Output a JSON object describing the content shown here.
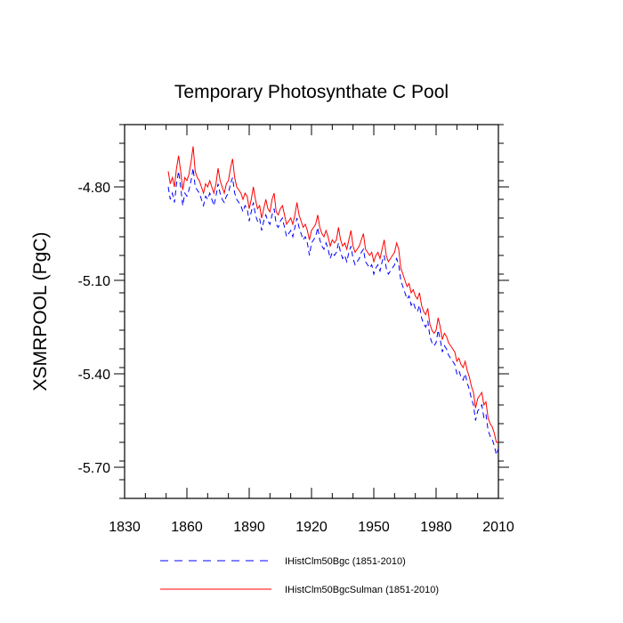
{
  "chart_data": {
    "type": "line",
    "title": "Temporary Photosynthate C Pool",
    "xlabel": "",
    "ylabel": "XSMRPOOL  (PgC)",
    "xlim": [
      1830,
      2010
    ],
    "ylim": [
      -5.8,
      -4.6
    ],
    "x_ticks": [
      1830,
      1860,
      1890,
      1920,
      1950,
      1980,
      2010
    ],
    "x_tick_labels": [
      "1830",
      "1860",
      "1890",
      "1920",
      "1950",
      "1980",
      "2010"
    ],
    "y_ticks": [
      -4.8,
      -5.1,
      -5.4,
      -5.7
    ],
    "y_tick_labels": [
      "-4.80",
      "-5.10",
      "-5.40",
      "-5.70"
    ],
    "grid": false,
    "legend_position": "bottom",
    "series": [
      {
        "name": "IHistClm50Bgc (1851-2010)",
        "color": "#0000ff",
        "style": "dashed",
        "x": [
          1851,
          1852,
          1853,
          1854,
          1855,
          1856,
          1857,
          1858,
          1859,
          1860,
          1861,
          1862,
          1863,
          1864,
          1865,
          1866,
          1867,
          1868,
          1869,
          1870,
          1871,
          1872,
          1873,
          1874,
          1875,
          1876,
          1877,
          1878,
          1879,
          1880,
          1881,
          1882,
          1883,
          1884,
          1885,
          1886,
          1887,
          1888,
          1889,
          1890,
          1891,
          1892,
          1893,
          1894,
          1895,
          1896,
          1897,
          1898,
          1899,
          1900,
          1901,
          1902,
          1903,
          1904,
          1905,
          1906,
          1907,
          1908,
          1909,
          1910,
          1911,
          1912,
          1913,
          1914,
          1915,
          1916,
          1917,
          1918,
          1919,
          1920,
          1921,
          1922,
          1923,
          1924,
          1925,
          1926,
          1927,
          1928,
          1929,
          1930,
          1931,
          1932,
          1933,
          1934,
          1935,
          1936,
          1937,
          1938,
          1939,
          1940,
          1941,
          1942,
          1943,
          1944,
          1945,
          1946,
          1947,
          1948,
          1949,
          1950,
          1951,
          1952,
          1953,
          1954,
          1955,
          1956,
          1957,
          1958,
          1959,
          1960,
          1961,
          1962,
          1963,
          1964,
          1965,
          1966,
          1967,
          1968,
          1969,
          1970,
          1971,
          1972,
          1973,
          1974,
          1975,
          1976,
          1977,
          1978,
          1979,
          1980,
          1981,
          1982,
          1983,
          1984,
          1985,
          1986,
          1987,
          1988,
          1989,
          1990,
          1991,
          1992,
          1993,
          1994,
          1995,
          1996,
          1997,
          1998,
          1999,
          2000,
          2001,
          2002,
          2003,
          2004,
          2005,
          2006,
          2007,
          2008,
          2009,
          2010
        ],
        "y": [
          -4.8,
          -4.84,
          -4.82,
          -4.85,
          -4.79,
          -4.75,
          -4.8,
          -4.86,
          -4.82,
          -4.83,
          -4.81,
          -4.78,
          -4.74,
          -4.8,
          -4.81,
          -4.82,
          -4.84,
          -4.86,
          -4.83,
          -4.84,
          -4.82,
          -4.84,
          -4.86,
          -4.83,
          -4.79,
          -4.82,
          -4.84,
          -4.85,
          -4.83,
          -4.82,
          -4.79,
          -4.77,
          -4.82,
          -4.84,
          -4.85,
          -4.86,
          -4.88,
          -4.86,
          -4.87,
          -4.91,
          -4.88,
          -4.85,
          -4.89,
          -4.91,
          -4.9,
          -4.94,
          -4.91,
          -4.89,
          -4.91,
          -4.92,
          -4.89,
          -4.87,
          -4.92,
          -4.93,
          -4.91,
          -4.9,
          -4.93,
          -4.96,
          -4.95,
          -4.94,
          -4.96,
          -4.93,
          -4.9,
          -4.93,
          -4.95,
          -4.97,
          -4.96,
          -4.98,
          -5.02,
          -4.98,
          -4.97,
          -4.96,
          -4.93,
          -4.97,
          -4.99,
          -5.0,
          -4.98,
          -5.0,
          -5.03,
          -5.01,
          -5.02,
          -5.01,
          -4.98,
          -5.01,
          -5.03,
          -5.02,
          -5.04,
          -5.01,
          -4.99,
          -5.03,
          -5.05,
          -5.04,
          -5.03,
          -5.01,
          -5.0,
          -5.04,
          -5.05,
          -5.06,
          -5.05,
          -5.08,
          -5.06,
          -5.05,
          -5.07,
          -5.04,
          -5.02,
          -5.06,
          -5.08,
          -5.07,
          -5.06,
          -5.05,
          -5.03,
          -5.05,
          -5.1,
          -5.12,
          -5.14,
          -5.16,
          -5.15,
          -5.18,
          -5.17,
          -5.19,
          -5.2,
          -5.18,
          -5.22,
          -5.24,
          -5.25,
          -5.23,
          -5.28,
          -5.3,
          -5.31,
          -5.3,
          -5.26,
          -5.29,
          -5.33,
          -5.31,
          -5.32,
          -5.34,
          -5.35,
          -5.36,
          -5.37,
          -5.4,
          -5.39,
          -5.41,
          -5.42,
          -5.4,
          -5.43,
          -5.45,
          -5.48,
          -5.5,
          -5.55,
          -5.52,
          -5.51,
          -5.5,
          -5.54,
          -5.53,
          -5.58,
          -5.6,
          -5.61,
          -5.63,
          -5.66,
          -5.64
        ]
      },
      {
        "name": "IHistClm50BgcSulman (1851-2010)",
        "color": "#ff0000",
        "style": "solid",
        "x": [
          1851,
          1852,
          1853,
          1854,
          1855,
          1856,
          1857,
          1858,
          1859,
          1860,
          1861,
          1862,
          1863,
          1864,
          1865,
          1866,
          1867,
          1868,
          1869,
          1870,
          1871,
          1872,
          1873,
          1874,
          1875,
          1876,
          1877,
          1878,
          1879,
          1880,
          1881,
          1882,
          1883,
          1884,
          1885,
          1886,
          1887,
          1888,
          1889,
          1890,
          1891,
          1892,
          1893,
          1894,
          1895,
          1896,
          1897,
          1898,
          1899,
          1900,
          1901,
          1902,
          1903,
          1904,
          1905,
          1906,
          1907,
          1908,
          1909,
          1910,
          1911,
          1912,
          1913,
          1914,
          1915,
          1916,
          1917,
          1918,
          1919,
          1920,
          1921,
          1922,
          1923,
          1924,
          1925,
          1926,
          1927,
          1928,
          1929,
          1930,
          1931,
          1932,
          1933,
          1934,
          1935,
          1936,
          1937,
          1938,
          1939,
          1940,
          1941,
          1942,
          1943,
          1944,
          1945,
          1946,
          1947,
          1948,
          1949,
          1950,
          1951,
          1952,
          1953,
          1954,
          1955,
          1956,
          1957,
          1958,
          1959,
          1960,
          1961,
          1962,
          1963,
          1964,
          1965,
          1966,
          1967,
          1968,
          1969,
          1970,
          1971,
          1972,
          1973,
          1974,
          1975,
          1976,
          1977,
          1978,
          1979,
          1980,
          1981,
          1982,
          1983,
          1984,
          1985,
          1986,
          1987,
          1988,
          1989,
          1990,
          1991,
          1992,
          1993,
          1994,
          1995,
          1996,
          1997,
          1998,
          1999,
          2000,
          2001,
          2002,
          2003,
          2004,
          2005,
          2006,
          2007,
          2008,
          2009,
          2010
        ],
        "y": [
          -4.75,
          -4.79,
          -4.77,
          -4.8,
          -4.74,
          -4.7,
          -4.75,
          -4.81,
          -4.77,
          -4.78,
          -4.76,
          -4.72,
          -4.67,
          -4.75,
          -4.77,
          -4.78,
          -4.8,
          -4.82,
          -4.79,
          -4.8,
          -4.78,
          -4.8,
          -4.82,
          -4.79,
          -4.74,
          -4.78,
          -4.8,
          -4.82,
          -4.79,
          -4.78,
          -4.74,
          -4.71,
          -4.77,
          -4.8,
          -4.81,
          -4.82,
          -4.84,
          -4.82,
          -4.83,
          -4.87,
          -4.84,
          -4.8,
          -4.84,
          -4.87,
          -4.86,
          -4.9,
          -4.87,
          -4.84,
          -4.87,
          -4.88,
          -4.84,
          -4.82,
          -4.88,
          -4.89,
          -4.87,
          -4.86,
          -4.89,
          -4.92,
          -4.91,
          -4.9,
          -4.92,
          -4.89,
          -4.85,
          -4.89,
          -4.91,
          -4.93,
          -4.92,
          -4.94,
          -4.97,
          -4.94,
          -4.93,
          -4.92,
          -4.89,
          -4.93,
          -4.95,
          -4.96,
          -4.94,
          -4.96,
          -4.99,
          -4.97,
          -4.98,
          -4.97,
          -4.93,
          -4.97,
          -4.99,
          -4.98,
          -5.0,
          -4.97,
          -4.94,
          -4.99,
          -5.01,
          -5.0,
          -4.99,
          -4.97,
          -4.95,
          -5.0,
          -5.01,
          -5.02,
          -5.01,
          -5.04,
          -5.02,
          -5.01,
          -5.03,
          -5.0,
          -4.97,
          -5.02,
          -5.04,
          -5.03,
          -5.02,
          -5.01,
          -4.98,
          -5.0,
          -5.06,
          -5.08,
          -5.1,
          -5.12,
          -5.11,
          -5.14,
          -5.13,
          -5.15,
          -5.16,
          -5.14,
          -5.18,
          -5.2,
          -5.21,
          -5.19,
          -5.24,
          -5.26,
          -5.27,
          -5.26,
          -5.22,
          -5.25,
          -5.29,
          -5.27,
          -5.28,
          -5.3,
          -5.31,
          -5.32,
          -5.33,
          -5.36,
          -5.35,
          -5.37,
          -5.38,
          -5.36,
          -5.39,
          -5.41,
          -5.44,
          -5.46,
          -5.51,
          -5.48,
          -5.47,
          -5.46,
          -5.5,
          -5.49,
          -5.54,
          -5.56,
          -5.57,
          -5.59,
          -5.62,
          -5.62
        ]
      }
    ]
  }
}
